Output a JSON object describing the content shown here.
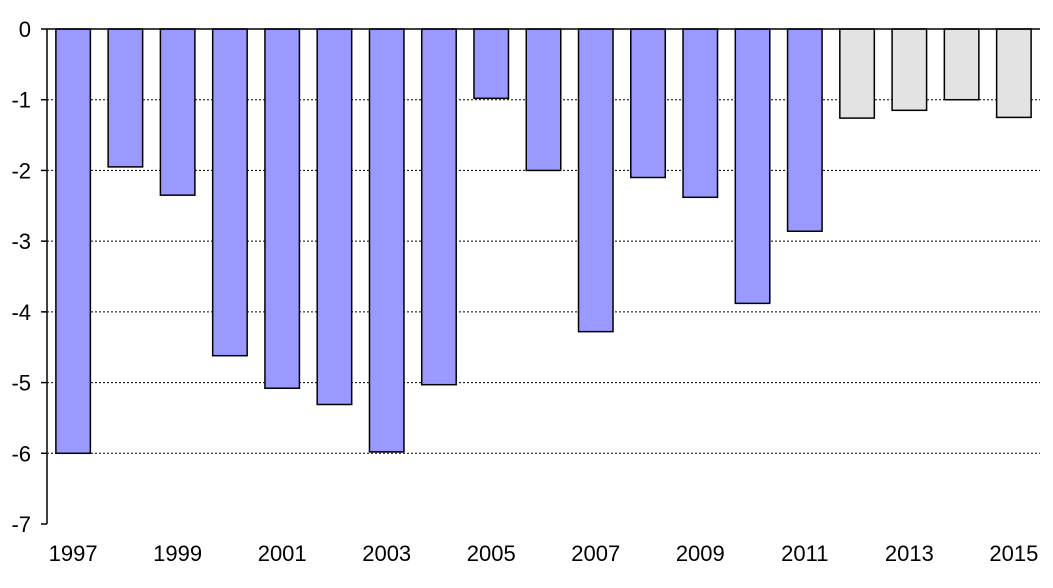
{
  "chart_data": {
    "type": "bar",
    "categories": [
      "1997",
      "1998",
      "1999",
      "2000",
      "2001",
      "2002",
      "2003",
      "2004",
      "2005",
      "2006",
      "2007",
      "2008",
      "2009",
      "2010",
      "2011",
      "2012",
      "2013",
      "2014",
      "2015"
    ],
    "values": [
      -6.0,
      -1.95,
      -2.35,
      -4.62,
      -5.08,
      -5.31,
      -5.98,
      -5.03,
      -0.98,
      -2.0,
      -4.28,
      -2.1,
      -2.38,
      -3.88,
      -2.86,
      -1.26,
      -1.15,
      -1.0,
      -1.25
    ],
    "x_tick_labels": [
      "1997",
      "",
      "1999",
      "",
      "2001",
      "",
      "2003",
      "",
      "2005",
      "",
      "2007",
      "",
      "2009",
      "",
      "2011",
      "",
      "2013",
      "",
      "2015"
    ],
    "y_ticks": [
      "0",
      "-1",
      "-2",
      "-3",
      "-4",
      "-5",
      "-6",
      "-7"
    ],
    "y_tick_values": [
      0,
      -1,
      -2,
      -3,
      -4,
      -5,
      -6,
      -7
    ],
    "ylim": [
      -7,
      0
    ],
    "grid": true,
    "colors": {
      "actual": "#9999ff",
      "forecast": "#e3e3e3",
      "outline": "#000000"
    },
    "forecast_from_index": 15,
    "title": "",
    "xlabel": "",
    "ylabel": ""
  }
}
